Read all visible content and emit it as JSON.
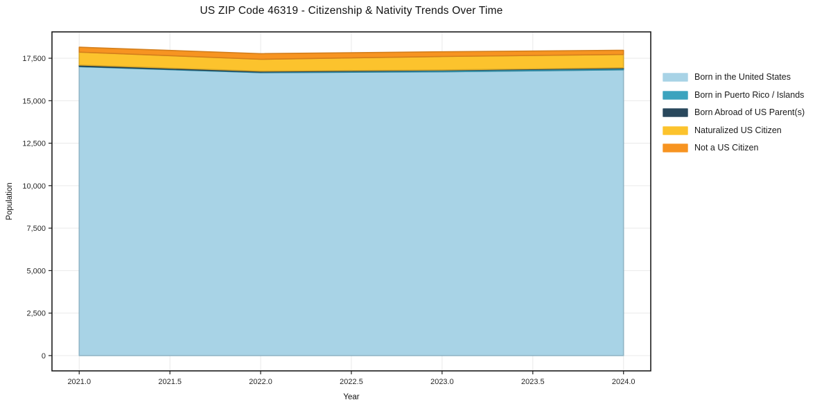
{
  "title": "US ZIP Code 46319 - Citizenship & Nativity Trends Over Time",
  "chart_data": {
    "type": "area",
    "stacked": true,
    "title": "US ZIP Code 46319 - Citizenship & Nativity Trends Over Time",
    "xlabel": "Year",
    "ylabel": "Population",
    "x": [
      2021,
      2022,
      2023,
      2024
    ],
    "series": [
      {
        "name": "Born in the United States",
        "color": "#A8D3E6",
        "values": [
          17000,
          16650,
          16700,
          16820
        ]
      },
      {
        "name": "Born in Puerto Rico / Islands",
        "color": "#3BA3BE",
        "values": [
          30,
          40,
          80,
          80
        ]
      },
      {
        "name": "Born Abroad of US Parent(s)",
        "color": "#29485C",
        "values": [
          70,
          50,
          30,
          40
        ]
      },
      {
        "name": "Naturalized US Citizen",
        "color": "#FCC32D",
        "values": [
          760,
          700,
          790,
          780
        ]
      },
      {
        "name": "Not a US Citizen",
        "color": "#F79421",
        "values": [
          290,
          330,
          280,
          250
        ]
      }
    ],
    "xticks": {
      "values": [
        2021,
        2021.5,
        2022,
        2022.5,
        2023,
        2023.5,
        2024
      ],
      "labels": [
        "2021.0",
        "2021.5",
        "2022.0",
        "2022.5",
        "2023.0",
        "2023.5",
        "2024.0"
      ]
    },
    "yticks": {
      "values": [
        0,
        2500,
        5000,
        7500,
        10000,
        12500,
        15000,
        17500
      ],
      "labels": [
        "0",
        "2,500",
        "5,000",
        "7,500",
        "10,000",
        "12,500",
        "15,000",
        "17,500"
      ]
    },
    "xlim": [
      2020.85,
      2024.15
    ],
    "ylim": [
      -900,
      19050
    ],
    "grid": true,
    "legend_position": "right"
  },
  "style": {
    "grid_color": "#E9E9E9",
    "frame_color": "#1A1A1A",
    "tick_label_color": "#262626",
    "background": "#FFFFFF"
  }
}
